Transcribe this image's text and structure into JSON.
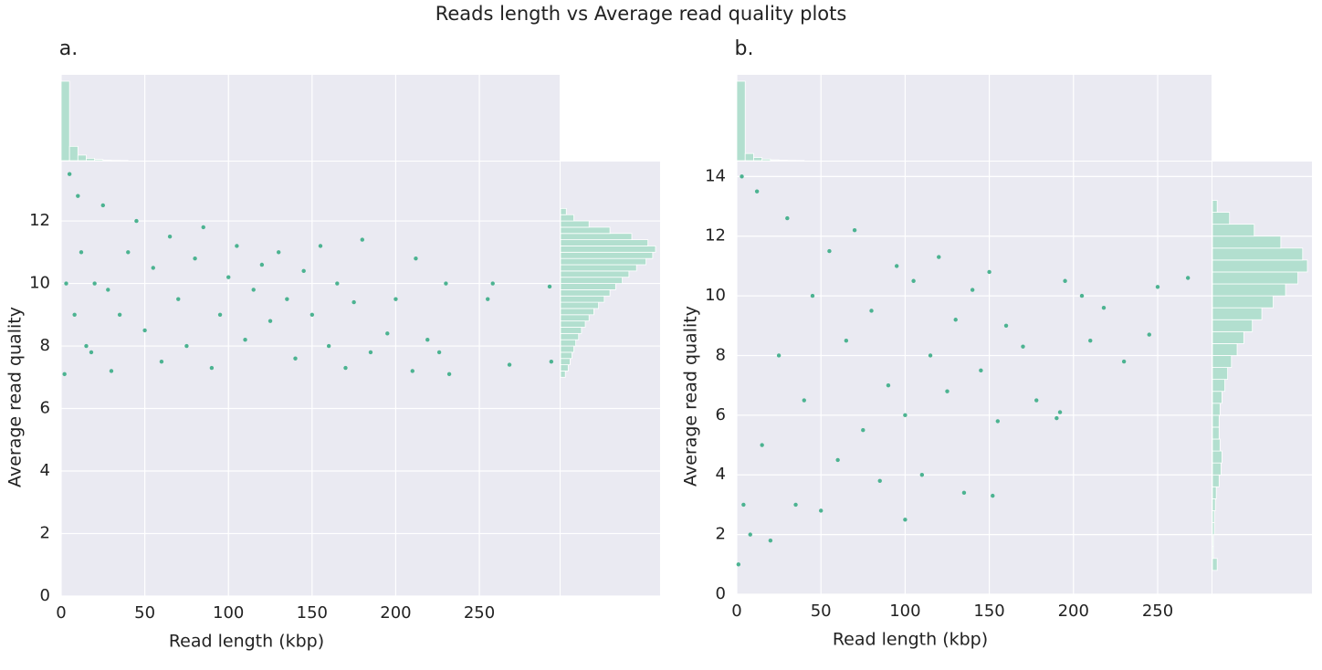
{
  "title": "Reads length vs Average read quality plots",
  "chart_data": [
    {
      "type": "scatter",
      "panel_label": "a.",
      "xlabel": "Read length (kbp)",
      "ylabel": "Average read quality",
      "color": "#4cb391",
      "hist_color": "#b2dfcf",
      "grid": true,
      "xlim": [
        0,
        298
      ],
      "ylim": [
        0,
        13.9
      ],
      "xticks": [
        0,
        50,
        100,
        150,
        200,
        250
      ],
      "yticks": [
        0,
        2,
        4,
        6,
        8,
        10,
        12
      ],
      "x": [
        2,
        5,
        10,
        15,
        20,
        25,
        30,
        35,
        40,
        45,
        50,
        55,
        60,
        65,
        70,
        75,
        80,
        85,
        90,
        95,
        100,
        105,
        110,
        115,
        120,
        125,
        130,
        135,
        140,
        145,
        150,
        155,
        160,
        165,
        170,
        175,
        180,
        185,
        195,
        200,
        212,
        219,
        226,
        230,
        232,
        258,
        255,
        268,
        292,
        293,
        210,
        3,
        8,
        12,
        18,
        28
      ],
      "values": [
        7.1,
        13.5,
        12.8,
        8,
        10,
        12.5,
        7.2,
        9,
        11,
        12,
        8.5,
        10.5,
        7.5,
        11.5,
        9.5,
        8,
        10.8,
        11.8,
        7.3,
        9,
        10.2,
        11.2,
        8.2,
        9.8,
        10.6,
        8.8,
        11,
        9.5,
        7.6,
        10.4,
        9,
        11.2,
        8,
        10,
        7.3,
        9.4,
        11.4,
        7.8,
        8.4,
        9.5,
        10.8,
        8.2,
        7.8,
        10,
        7.1,
        10,
        9.5,
        7.4,
        9.9,
        7.5,
        7.2,
        10,
        9,
        11,
        7.8,
        9.8
      ],
      "top_histogram": {
        "bins": [
          0,
          5,
          10,
          15,
          20,
          25,
          30,
          35,
          40
        ],
        "counts": [
          100,
          18,
          7,
          3,
          1.5,
          0.7,
          0.3,
          0.2
        ]
      },
      "right_histogram": {
        "bins": [
          7.0,
          7.2,
          7.4,
          7.6,
          7.8,
          8.0,
          8.2,
          8.4,
          8.6,
          8.8,
          9.0,
          9.2,
          9.4,
          9.6,
          9.8,
          10.0,
          10.2,
          10.4,
          10.6,
          10.8,
          11.0,
          11.2,
          11.4,
          11.6,
          11.8,
          12.0,
          12.2,
          12.4
        ],
        "counts": [
          5,
          8,
          10,
          12,
          14,
          16,
          19,
          22,
          26,
          30,
          35,
          40,
          46,
          52,
          58,
          65,
          72,
          80,
          90,
          97,
          100,
          92,
          75,
          52,
          30,
          14,
          6
        ]
      }
    },
    {
      "type": "scatter",
      "panel_label": "b.",
      "xlabel": "Read length (kbp)",
      "ylabel": "Average read quality",
      "color": "#4cb391",
      "hist_color": "#b2dfcf",
      "grid": true,
      "xlim": [
        0,
        282
      ],
      "ylim": [
        0,
        14.5
      ],
      "xticks": [
        0,
        50,
        100,
        150,
        200,
        250
      ],
      "yticks": [
        0,
        2,
        4,
        6,
        8,
        10,
        12,
        14
      ],
      "x": [
        1,
        3,
        4,
        8,
        12,
        15,
        20,
        25,
        30,
        35,
        40,
        45,
        50,
        55,
        60,
        65,
        70,
        75,
        80,
        85,
        90,
        95,
        100,
        105,
        110,
        115,
        120,
        125,
        130,
        135,
        140,
        145,
        150,
        155,
        160,
        170,
        178,
        190,
        195,
        205,
        210,
        218,
        230,
        245,
        250,
        268,
        192,
        152,
        100
      ],
      "values": [
        1,
        14,
        3,
        2,
        13.5,
        5,
        1.8,
        8,
        12.6,
        3,
        6.5,
        10,
        2.8,
        11.5,
        4.5,
        8.5,
        12.2,
        5.5,
        9.5,
        3.8,
        7,
        11,
        6,
        10.5,
        4,
        8,
        11.3,
        6.8,
        9.2,
        3.4,
        10.2,
        7.5,
        10.8,
        5.8,
        9,
        8.3,
        6.5,
        5.9,
        10.5,
        10,
        8.5,
        9.6,
        7.8,
        8.7,
        10.3,
        10.6,
        6.1,
        3.3,
        2.5
      ],
      "top_histogram": {
        "bins": [
          0,
          5,
          10,
          15,
          20,
          25,
          30,
          35,
          40
        ],
        "counts": [
          100,
          9,
          4,
          2,
          1,
          0.5,
          0.3,
          0.2
        ]
      },
      "right_histogram": {
        "bins": [
          0.8,
          1.2,
          1.6,
          2.0,
          2.4,
          2.8,
          3.2,
          3.6,
          4.0,
          4.4,
          4.8,
          5.2,
          5.6,
          6.0,
          6.4,
          6.8,
          7.2,
          7.6,
          8.0,
          8.4,
          8.8,
          9.2,
          9.6,
          10.0,
          10.4,
          10.8,
          11.2,
          11.6,
          12.0,
          12.4,
          12.8,
          13.2
        ],
        "counts": [
          5,
          1,
          1,
          2,
          2,
          3,
          4,
          7,
          9,
          10,
          8,
          7,
          7,
          8,
          10,
          13,
          16,
          20,
          26,
          33,
          42,
          52,
          64,
          77,
          90,
          100,
          95,
          72,
          44,
          18,
          5
        ]
      }
    }
  ]
}
